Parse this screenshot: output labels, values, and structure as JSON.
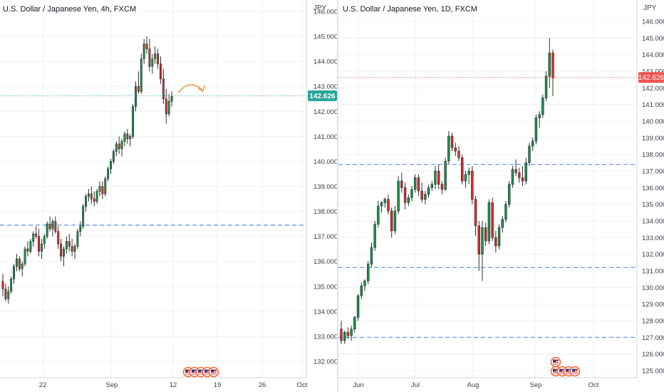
{
  "colors": {
    "up": "#26a69a",
    "up_body": "#1e8f4e",
    "down": "#d32f2f",
    "grid": "#eef0f3",
    "axis_text": "#3a3e4a",
    "dashed_level": "#5b8def",
    "price_tag_4h": "#26a69a",
    "price_tag_1d": "#ef5350",
    "arrow": "#f39c3d"
  },
  "charts": [
    {
      "id": "left",
      "title": "U.S. Dollar / Japanese Yen, 4h, FXCM",
      "currency_label": "JPY",
      "y_ticks": [
        "132.000",
        "133.000",
        "134.000",
        "135.000",
        "136.000",
        "137.000",
        "138.000",
        "139.000",
        "140.000",
        "141.000",
        "142.000",
        "143.000",
        "144.000",
        "145.000",
        "146.000"
      ],
      "x_ticks": [
        "22",
        "Sep",
        "12",
        "19",
        "26",
        "Oct"
      ],
      "last_price": "142.626",
      "events_icon": "us-flag-event-icons"
    },
    {
      "id": "right",
      "title": "U.S. Dollar / Japanese Yen, 1D, FXCM",
      "currency_label": "JPY",
      "y_ticks": [
        "125.000",
        "126.000",
        "127.000",
        "128.000",
        "129.000",
        "130.000",
        "131.000",
        "132.000",
        "133.000",
        "134.000",
        "135.000",
        "136.000",
        "137.000",
        "138.000",
        "139.000",
        "140.000",
        "141.000",
        "142.000",
        "143.000",
        "144.000",
        "145.000",
        "146.000"
      ],
      "x_ticks": [
        "Jun",
        "Jul",
        "Aug",
        "Sep",
        "Oct"
      ],
      "last_price": "142.626",
      "events_icon": "us-flag-event-icons"
    }
  ],
  "chart_data": [
    {
      "type": "candlestick",
      "title": "U.S. Dollar / Japanese Yen, 4h, FXCM",
      "ylabel": "JPY",
      "ylim": [
        131.6,
        146.4
      ],
      "last_price": 142.626,
      "horizontal_levels": [
        137.45
      ],
      "projection": "curved arrow pointing down-right after last candle",
      "candles": [
        [
          135.2,
          135.5,
          134.6,
          134.9
        ],
        [
          134.9,
          135.1,
          134.4,
          134.5
        ],
        [
          134.5,
          135.0,
          134.3,
          134.8
        ],
        [
          134.8,
          135.4,
          134.7,
          135.3
        ],
        [
          135.3,
          135.9,
          135.1,
          135.8
        ],
        [
          135.8,
          136.3,
          135.6,
          136.1
        ],
        [
          136.1,
          136.2,
          135.6,
          135.7
        ],
        [
          135.7,
          136.0,
          135.4,
          135.9
        ],
        [
          135.9,
          136.6,
          135.8,
          136.5
        ],
        [
          136.5,
          136.8,
          136.2,
          136.4
        ],
        [
          136.4,
          136.9,
          136.3,
          136.8
        ],
        [
          136.8,
          137.2,
          136.6,
          137.1
        ],
        [
          137.1,
          137.4,
          136.9,
          137.0
        ],
        [
          137.0,
          137.3,
          136.2,
          136.4
        ],
        [
          136.4,
          136.9,
          136.1,
          136.7
        ],
        [
          136.7,
          137.1,
          136.5,
          137.0
        ],
        [
          137.0,
          137.6,
          136.9,
          137.5
        ],
        [
          137.5,
          137.8,
          137.2,
          137.3
        ],
        [
          137.3,
          137.7,
          137.0,
          137.6
        ],
        [
          137.6,
          137.8,
          137.1,
          137.2
        ],
        [
          137.2,
          137.4,
          136.5,
          136.7
        ],
        [
          136.7,
          136.9,
          136.0,
          136.2
        ],
        [
          136.2,
          136.6,
          135.8,
          136.5
        ],
        [
          136.5,
          137.0,
          136.3,
          136.8
        ],
        [
          136.8,
          137.1,
          136.4,
          136.6
        ],
        [
          136.6,
          136.9,
          136.2,
          136.4
        ],
        [
          136.4,
          136.7,
          136.1,
          136.6
        ],
        [
          136.6,
          137.3,
          136.5,
          137.2
        ],
        [
          137.2,
          137.6,
          137.0,
          137.4
        ],
        [
          137.4,
          138.3,
          137.3,
          138.2
        ],
        [
          138.2,
          138.7,
          138.0,
          138.6
        ],
        [
          138.6,
          138.9,
          138.4,
          138.7
        ],
        [
          138.7,
          139.0,
          138.3,
          138.5
        ],
        [
          138.5,
          138.8,
          138.2,
          138.4
        ],
        [
          138.4,
          138.9,
          138.3,
          138.8
        ],
        [
          138.8,
          139.2,
          138.6,
          139.0
        ],
        [
          139.0,
          139.2,
          138.5,
          138.7
        ],
        [
          138.7,
          139.4,
          138.6,
          139.3
        ],
        [
          139.3,
          139.8,
          139.2,
          139.7
        ],
        [
          139.7,
          140.1,
          139.5,
          140.0
        ],
        [
          140.0,
          140.5,
          139.9,
          140.4
        ],
        [
          140.4,
          140.8,
          140.2,
          140.7
        ],
        [
          140.7,
          141.0,
          140.3,
          140.5
        ],
        [
          140.5,
          140.9,
          140.2,
          140.8
        ],
        [
          140.8,
          141.2,
          140.6,
          141.1
        ],
        [
          141.1,
          141.3,
          140.7,
          140.9
        ],
        [
          140.9,
          141.1,
          140.6,
          141.0
        ],
        [
          141.0,
          142.3,
          140.9,
          142.2
        ],
        [
          142.2,
          143.2,
          142.0,
          143.0
        ],
        [
          143.0,
          143.6,
          142.7,
          142.8
        ],
        [
          142.8,
          144.3,
          142.7,
          144.1
        ],
        [
          144.1,
          144.9,
          143.9,
          144.7
        ],
        [
          144.7,
          145.0,
          144.3,
          144.5
        ],
        [
          144.5,
          144.9,
          143.6,
          143.8
        ],
        [
          143.8,
          144.3,
          143.5,
          144.1
        ],
        [
          144.1,
          144.6,
          143.9,
          144.3
        ],
        [
          144.3,
          144.5,
          143.7,
          143.9
        ],
        [
          143.9,
          144.2,
          143.1,
          143.3
        ],
        [
          143.3,
          143.7,
          142.3,
          142.5
        ],
        [
          142.5,
          142.9,
          141.5,
          141.9
        ],
        [
          141.9,
          142.7,
          141.8,
          142.4
        ],
        [
          142.4,
          142.8,
          142.2,
          142.6
        ]
      ]
    },
    {
      "type": "candlestick",
      "title": "U.S. Dollar / Japanese Yen, 1D, FXCM",
      "ylabel": "JPY",
      "ylim": [
        124.4,
        146.8
      ],
      "last_price": 142.626,
      "horizontal_levels": [
        137.4,
        131.2,
        127.0
      ],
      "candles": [
        [
          127.5,
          128.0,
          126.6,
          126.8
        ],
        [
          126.8,
          127.4,
          126.6,
          127.3
        ],
        [
          127.3,
          127.6,
          126.9,
          127.1
        ],
        [
          127.1,
          127.7,
          126.8,
          127.5
        ],
        [
          127.5,
          128.3,
          127.3,
          128.2
        ],
        [
          128.2,
          129.6,
          128.0,
          129.5
        ],
        [
          129.5,
          130.3,
          129.3,
          130.1
        ],
        [
          130.1,
          130.5,
          129.8,
          130.4
        ],
        [
          130.4,
          131.6,
          130.2,
          131.4
        ],
        [
          131.4,
          132.7,
          131.2,
          132.4
        ],
        [
          132.4,
          134.0,
          132.2,
          133.8
        ],
        [
          133.8,
          135.2,
          133.6,
          134.9
        ],
        [
          134.9,
          135.2,
          134.5,
          135.1
        ],
        [
          135.1,
          135.4,
          134.8,
          135.3
        ],
        [
          135.3,
          135.6,
          134.4,
          134.6
        ],
        [
          134.6,
          134.8,
          133.0,
          133.4
        ],
        [
          133.4,
          134.9,
          133.2,
          134.6
        ],
        [
          134.6,
          136.7,
          134.4,
          136.4
        ],
        [
          136.4,
          136.9,
          135.7,
          136.0
        ],
        [
          136.0,
          136.3,
          134.7,
          135.1
        ],
        [
          135.1,
          135.6,
          134.9,
          135.4
        ],
        [
          135.4,
          136.1,
          135.2,
          135.9
        ],
        [
          135.9,
          136.8,
          135.7,
          136.6
        ],
        [
          136.6,
          136.8,
          135.5,
          135.8
        ],
        [
          135.8,
          136.3,
          135.1,
          135.3
        ],
        [
          135.3,
          135.8,
          135.0,
          135.6
        ],
        [
          135.6,
          136.2,
          135.4,
          136.0
        ],
        [
          136.0,
          136.4,
          135.8,
          136.2
        ],
        [
          136.2,
          137.3,
          135.9,
          137.0
        ],
        [
          137.0,
          137.4,
          135.9,
          136.2
        ],
        [
          136.2,
          136.4,
          135.6,
          135.9
        ],
        [
          135.9,
          137.8,
          135.8,
          137.6
        ],
        [
          137.6,
          139.4,
          137.4,
          139.1
        ],
        [
          139.1,
          139.3,
          138.2,
          138.4
        ],
        [
          138.4,
          138.7,
          137.9,
          138.2
        ],
        [
          138.2,
          138.5,
          137.6,
          137.8
        ],
        [
          137.8,
          138.0,
          136.2,
          136.4
        ],
        [
          136.4,
          137.0,
          136.0,
          136.8
        ],
        [
          136.8,
          137.2,
          136.2,
          137.0
        ],
        [
          137.0,
          137.3,
          135.0,
          135.3
        ],
        [
          135.3,
          135.5,
          133.1,
          133.7
        ],
        [
          133.7,
          134.0,
          131.0,
          132.0
        ],
        [
          132.0,
          134.0,
          130.4,
          133.6
        ],
        [
          133.6,
          133.9,
          132.5,
          132.8
        ],
        [
          132.8,
          135.3,
          132.6,
          135.1
        ],
        [
          135.1,
          135.4,
          132.8,
          133.0
        ],
        [
          133.0,
          133.4,
          132.1,
          132.5
        ],
        [
          132.5,
          133.8,
          132.3,
          133.6
        ],
        [
          133.6,
          134.3,
          133.3,
          134.1
        ],
        [
          134.1,
          135.2,
          133.9,
          135.0
        ],
        [
          135.0,
          136.4,
          134.8,
          136.2
        ],
        [
          136.2,
          137.3,
          136.0,
          137.1
        ],
        [
          137.1,
          137.7,
          136.7,
          136.9
        ],
        [
          136.9,
          137.2,
          136.3,
          136.6
        ],
        [
          136.6,
          137.3,
          136.1,
          136.4
        ],
        [
          136.4,
          137.8,
          136.2,
          137.5
        ],
        [
          137.5,
          138.7,
          137.3,
          138.5
        ],
        [
          138.5,
          139.0,
          138.2,
          138.8
        ],
        [
          138.8,
          140.4,
          138.6,
          140.2
        ],
        [
          140.2,
          140.6,
          139.6,
          140.4
        ],
        [
          140.4,
          141.6,
          140.2,
          141.4
        ],
        [
          141.4,
          143.0,
          141.2,
          142.7
        ],
        [
          142.7,
          145.0,
          142.0,
          144.1
        ],
        [
          144.1,
          144.3,
          141.5,
          142.6
        ]
      ]
    }
  ]
}
